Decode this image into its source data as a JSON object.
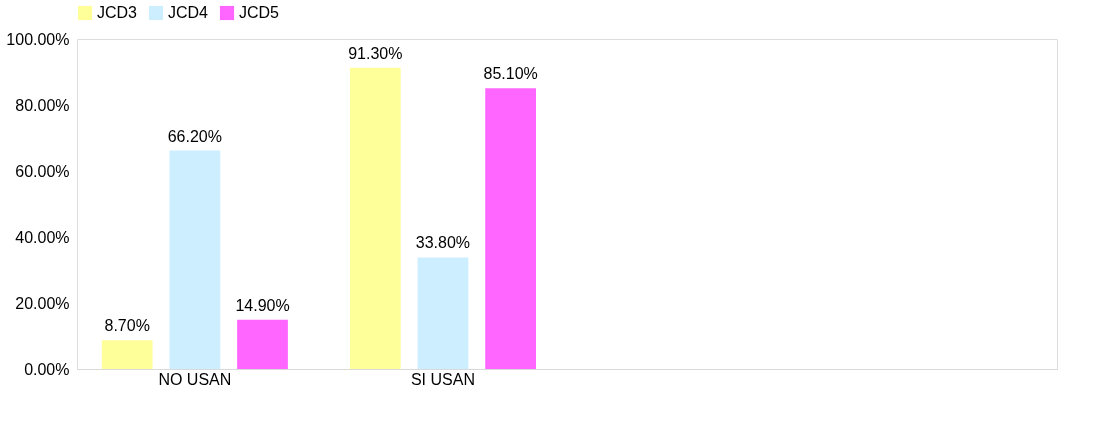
{
  "chart_data": {
    "type": "bar",
    "categories": [
      "NO USAN",
      "SI USAN",
      null,
      null
    ],
    "series": [
      {
        "name": "JCD3",
        "color": "#ffff99",
        "values": [
          8.7,
          91.3,
          null,
          null
        ],
        "value_labels": [
          "8.70%",
          "91.30%",
          null,
          null
        ]
      },
      {
        "name": "JCD4",
        "color": "#cceeff",
        "values": [
          66.2,
          33.8,
          null,
          null
        ],
        "value_labels": [
          "66.20%",
          "33.80%",
          null,
          null
        ]
      },
      {
        "name": "JCD5",
        "color": "#ff66ff",
        "values": [
          14.9,
          85.1,
          null,
          null
        ],
        "value_labels": [
          "14.90%",
          "85.10%",
          null,
          null
        ]
      }
    ],
    "ylim": [
      0,
      100
    ],
    "yticks": [
      {
        "value": 0,
        "label": "0.00%"
      },
      {
        "value": 20,
        "label": "20.00%"
      },
      {
        "value": 40,
        "label": "40.00%"
      },
      {
        "value": 60,
        "label": "60.00%"
      },
      {
        "value": 80,
        "label": "80.00%"
      },
      {
        "value": 100,
        "label": "100.00%"
      }
    ],
    "grid": false,
    "legend": "top"
  }
}
